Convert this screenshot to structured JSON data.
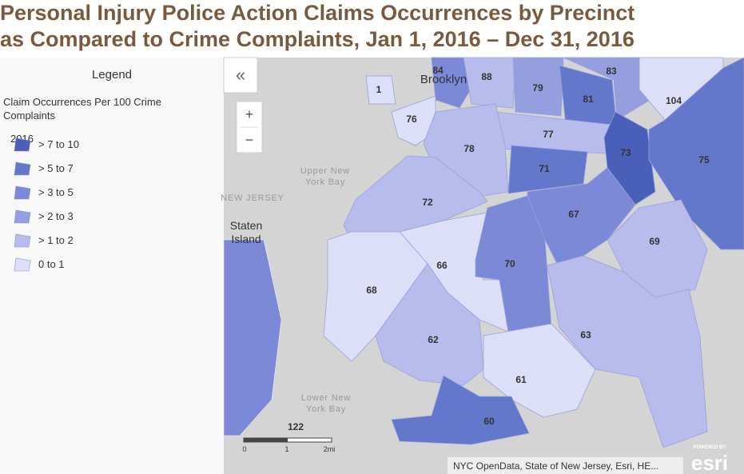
{
  "header": {
    "title_lines": [
      "Personal Injury Police Action Claims Occurrences by Precinct",
      "as Compared to Crime Complaints, Jan 1, 2016 – Dec 31, 2016"
    ]
  },
  "legend": {
    "heading": "Legend",
    "layer_title": "Claim Occurrences Per 100 Crime Complaints",
    "group": "2016",
    "items": [
      {
        "label": "> 7 to 10",
        "color": "#4a5fb8"
      },
      {
        "label": "> 5 to 7",
        "color": "#6377cb"
      },
      {
        "label": "> 3 to 5",
        "color": "#7c89d6"
      },
      {
        "label": "> 2 to 3",
        "color": "#959fe0"
      },
      {
        "label": "> 1 to 2",
        "color": "#b8bcec"
      },
      {
        "label": "0 to 1",
        "color": "#dddff8"
      }
    ]
  },
  "controls": {
    "collapse": "«",
    "zoom_in": "+",
    "zoom_out": "−"
  },
  "map": {
    "places": [
      {
        "lines": [
          "Brooklyn"
        ]
      },
      {
        "lines": [
          "Upper New",
          "York Bay"
        ]
      },
      {
        "lines": [
          "NEW JERSEY"
        ]
      },
      {
        "lines": [
          "Staten",
          "Island"
        ]
      },
      {
        "lines": [
          "Lower New",
          "York Bay"
        ]
      }
    ],
    "precincts": [
      {
        "label": "84"
      },
      {
        "label": "88"
      },
      {
        "label": "79"
      },
      {
        "label": "83"
      },
      {
        "label": "81"
      },
      {
        "label": "104"
      },
      {
        "label": "1"
      },
      {
        "label": "76"
      },
      {
        "label": "77"
      },
      {
        "label": "78"
      },
      {
        "label": "73"
      },
      {
        "label": "75"
      },
      {
        "label": "71"
      },
      {
        "label": "72"
      },
      {
        "label": "67"
      },
      {
        "label": "69"
      },
      {
        "label": "66"
      },
      {
        "label": "70"
      },
      {
        "label": "68"
      },
      {
        "label": "62"
      },
      {
        "label": "63"
      },
      {
        "label": "61"
      },
      {
        "label": "60"
      }
    ],
    "route": "122",
    "scale_labels": [
      "0",
      "1",
      "2mi"
    ],
    "attribution": "NYC OpenData, State of New Jersey, Esri, HE...",
    "logo": {
      "tagline": "POWERED BY",
      "brand": "esri"
    }
  }
}
